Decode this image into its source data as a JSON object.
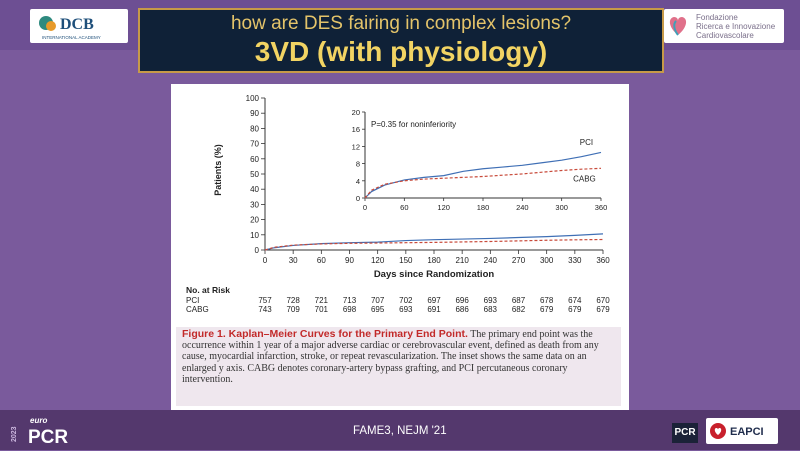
{
  "slide": {
    "title_line1": "how are DES fairing in complex lesions?",
    "title_line2": "3VD (with physiology)",
    "footer_note": "FAME3, NEJM '21"
  },
  "logos": {
    "dcb_name": "DCB",
    "dcb_sub": "INTERNATIONAL ACADEMY",
    "fic_line1": "Fondazione",
    "fic_line2": "Ricerca e Innovazione",
    "fic_line3": "Cardiovascolare",
    "pcr_euro": "euro",
    "pcr_year": "2023",
    "pcr_name": "PCR",
    "pcr_small": "PCR",
    "eapci": "EAPCI"
  },
  "chart_data": {
    "type": "line",
    "ylabel": "Patients (%)",
    "xlabel": "Days since Randomization",
    "ylim": [
      0,
      100
    ],
    "xlim": [
      0,
      360
    ],
    "x_ticks": [
      0,
      30,
      60,
      90,
      120,
      150,
      180,
      210,
      240,
      270,
      300,
      330,
      360
    ],
    "y_ticks": [
      0,
      10,
      20,
      30,
      40,
      50,
      60,
      70,
      80,
      90,
      100
    ],
    "series": [
      {
        "name": "PCI",
        "color": "#3f6fb5",
        "style": "solid",
        "x": [
          0,
          10,
          30,
          60,
          90,
          120,
          150,
          180,
          210,
          240,
          270,
          300,
          330,
          360
        ],
        "y": [
          0,
          1.5,
          3.0,
          4.2,
          4.8,
          5.2,
          6.2,
          6.8,
          7.2,
          7.6,
          8.2,
          8.8,
          9.6,
          10.6
        ]
      },
      {
        "name": "CABG",
        "color": "#c84a3a",
        "style": "dashed",
        "x": [
          0,
          10,
          30,
          60,
          90,
          120,
          150,
          180,
          210,
          240,
          270,
          300,
          330,
          360
        ],
        "y": [
          0,
          1.8,
          3.2,
          4.0,
          4.4,
          4.6,
          4.8,
          5.0,
          5.3,
          5.6,
          6.0,
          6.4,
          6.7,
          6.9
        ]
      }
    ],
    "inset": {
      "annotation": "P=0.35 for noninferiority",
      "ylim": [
        0,
        20
      ],
      "y_ticks": [
        0,
        4,
        8,
        12,
        16,
        20
      ],
      "x_ticks": [
        0,
        60,
        120,
        180,
        240,
        300,
        360
      ],
      "labels": [
        "PCI",
        "CABG"
      ]
    },
    "risk_table": {
      "title": "No. at Risk",
      "rows": [
        {
          "label": "PCI",
          "values": [
            757,
            728,
            721,
            713,
            707,
            702,
            697,
            696,
            693,
            687,
            678,
            674,
            670
          ]
        },
        {
          "label": "CABG",
          "values": [
            743,
            709,
            701,
            698,
            695,
            693,
            691,
            686,
            683,
            682,
            679,
            679,
            679
          ]
        }
      ]
    }
  },
  "caption": {
    "title": "Figure 1. Kaplan–Meier Curves for the Primary End Point.",
    "text": "The primary end point was the occurrence within 1 year of a major adverse cardiac or cerebrovascular event, defined as death from any cause, myocardial infarction, stroke, or repeat revascularization. The inset shows the same data on an enlarged y axis. CABG denotes coronary-artery bypass grafting, and PCI percutaneous coronary intervention."
  }
}
